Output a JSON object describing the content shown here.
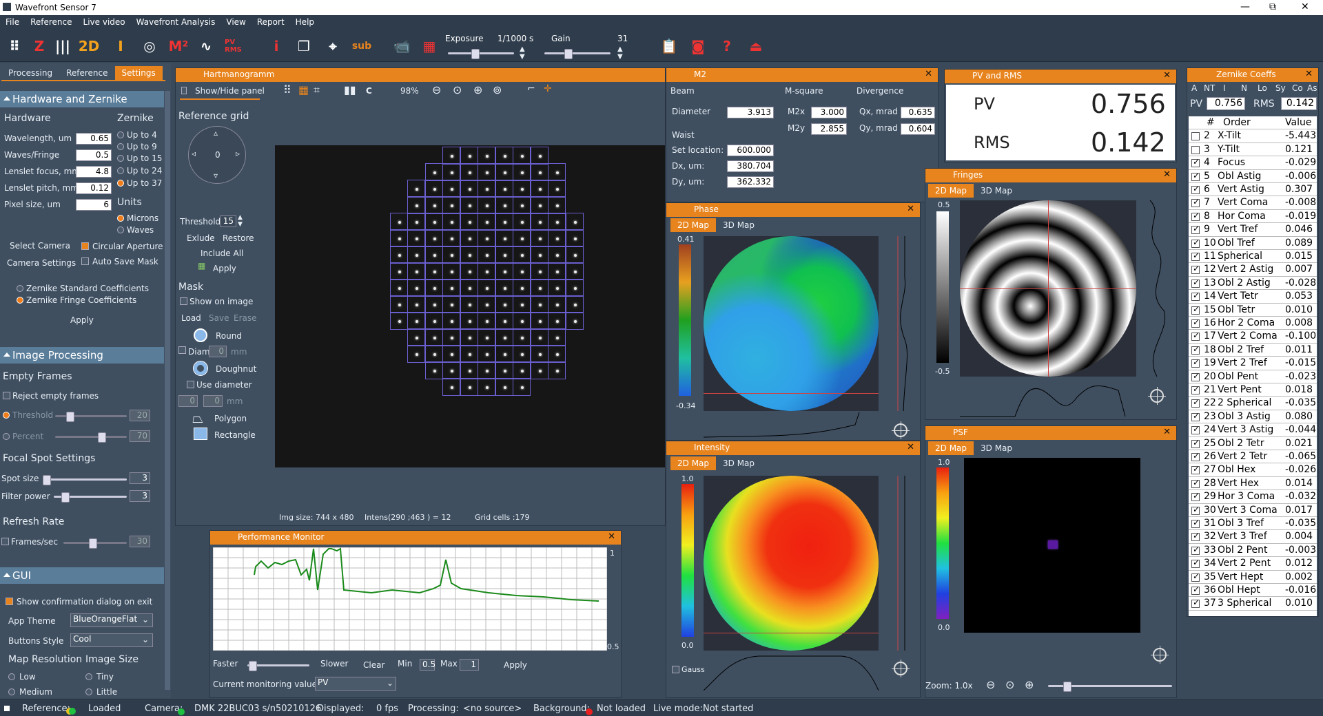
{
  "window": {
    "title": "Wavefront Sensor 7",
    "min": "—",
    "max": "⧉",
    "close": "✕"
  },
  "menu": [
    "File",
    "Reference",
    "Live video",
    "Wavefront Analysis",
    "View",
    "Report",
    "Help"
  ],
  "toolbar": {
    "exposure_label": "Exposure",
    "exposure_value": "1/1000 s",
    "gain_label": "Gain",
    "gain_value": "31",
    "exposure_pos": 0.35,
    "gain_pos": 0.35
  },
  "left_tabs": [
    "Processing",
    "Reference",
    "Settings"
  ],
  "hw": {
    "section": "Hardware and Zernike",
    "hardware": "Hardware",
    "zernike": "Zernike",
    "fields": [
      {
        "label": "Wavelength, um",
        "value": "0.65"
      },
      {
        "label": "Waves/Fringe",
        "value": "0.5"
      },
      {
        "label": "Lenslet focus, mm",
        "value": "4.8"
      },
      {
        "label": "Lenslet pitch, mm",
        "value": "0.12"
      },
      {
        "label": "Pixel size, um",
        "value": "6"
      }
    ],
    "zopts": [
      "Up to 4",
      "Up to 9",
      "Up to 15",
      "Up to 24",
      "Up to 37"
    ],
    "units": "Units",
    "unit_opts": [
      "Microns",
      "Waves"
    ],
    "select_camera": "Select Camera",
    "camera_settings": "Camera Settings",
    "circular": "Circular Aperture",
    "auto_save": "Auto Save Mask",
    "coef_std": "Zernike Standard Coefficients",
    "coef_fringe": "Zernike Fringe Coefficients",
    "apply": "Apply"
  },
  "ip": {
    "section": "Image Processing",
    "empty": "Empty Frames",
    "reject": "Reject empty frames",
    "threshold": "Threshold",
    "threshold_v": "20",
    "percent": "Percent",
    "percent_v": "70",
    "focal": "Focal Spot Settings",
    "spot": "Spot size",
    "spot_v": "3",
    "filter": "Filter power",
    "filter_v": "3",
    "refresh": "Refresh Rate",
    "fps": "Frames/sec",
    "fps_v": "30"
  },
  "gui": {
    "section": "GUI",
    "confirm": "Show confirmation dialog on exit",
    "theme_l": "App Theme",
    "theme_v": "BlueOrangeFlat",
    "btn_l": "Buttons Style",
    "btn_v": "Cool",
    "mapres": "Map Resolution",
    "imgsize": "Image Size",
    "res": [
      "Low",
      "Medium"
    ],
    "size": [
      "Tiny",
      "Little"
    ]
  },
  "hart": {
    "title": "Hartmanogramm",
    "show_hide": "Show/Hide panel",
    "zoom": "98%",
    "c": "C",
    "ref_grid": "Reference grid",
    "dial_v": "0",
    "threshold": "Threshold",
    "threshold_v": "15",
    "exclude": "Exlude",
    "restore": "Restore",
    "include_all": "Include All",
    "apply": "Apply",
    "mask": "Mask",
    "show_on_image": "Show on image",
    "load": "Load",
    "save": "Save",
    "erase": "Erase",
    "round": "Round",
    "diam": "Diam",
    "diam_v": "0",
    "doughnut": "Doughnut",
    "use_diam": "Use diameter",
    "d1": "0",
    "d2": "0",
    "mm": "mm",
    "polygon": "Polygon",
    "rectangle": "Rectangle",
    "status": {
      "img": "Img size: 744 x 480",
      "intens": "Intens(290 ;463 ) =  12",
      "cells": "Grid cells :179"
    }
  },
  "m2": {
    "title": "M2",
    "beam": "Beam",
    "msq": "M-square",
    "div": "Divergence",
    "diameter_l": "Diameter",
    "diameter": "3.913",
    "waist": "Waist",
    "setloc_l": "Set location:",
    "setloc": "600.000",
    "dx_l": "Dx, um:",
    "dx": "380.704",
    "dy_l": "Dy, um:",
    "dy": "362.332",
    "m2x_l": "M2x",
    "m2x": "3.000",
    "m2y_l": "M2y",
    "m2y": "2.855",
    "qx_l": "Qx, mrad",
    "qx": "0.635",
    "qy_l": "Qy, mrad",
    "qy": "0.604"
  },
  "pvrms": {
    "title": "PV and RMS",
    "pv_l": "PV",
    "pv": "0.756",
    "rms_l": "RMS",
    "rms": "0.142"
  },
  "phase": {
    "title": "Phase",
    "tab1": "2D Map",
    "tab2": "3D Map",
    "max": "0.41",
    "min": "-0.34"
  },
  "intensity": {
    "title": "Intensity",
    "tab1": "2D Map",
    "tab2": "3D Map",
    "max": "1.0",
    "min": "0.0",
    "gauss": "Gauss"
  },
  "fringes": {
    "title": "Fringes",
    "tab1": "2D Map",
    "tab2": "3D Map",
    "max": "0.5",
    "min": "-0.5"
  },
  "psf": {
    "title": "PSF",
    "tab1": "2D Map",
    "tab2": "3D Map",
    "max": "1.0",
    "min": "0.0",
    "zoom": "Zoom: 1.0x"
  },
  "perf": {
    "title": "Performance Monitor",
    "ymax": "1",
    "ymin": "0.5",
    "faster": "Faster",
    "slower": "Slower",
    "clear": "Clear",
    "min_l": "Min",
    "min": "0.5",
    "max_l": "Max",
    "max": "1",
    "apply": "Apply",
    "cur_l": "Current monitoring value",
    "cur": "PV"
  },
  "zc": {
    "title": "Zernike Coeffs",
    "hdr": [
      "A",
      "NT",
      "I",
      "N",
      "Lo",
      "Sy",
      "Co",
      "As"
    ],
    "pv_l": "PV",
    "pv": "0.756",
    "rms_l": "RMS",
    "rms": "0.142",
    "col_n": "#",
    "col_order": "Order",
    "col_value": "Value",
    "rows": [
      {
        "n": "2",
        "o": "X-Tilt",
        "v": "-5.443",
        "c": false
      },
      {
        "n": "3",
        "o": "Y-Tilt",
        "v": "0.121",
        "c": false
      },
      {
        "n": "4",
        "o": "Focus",
        "v": "-0.029",
        "c": true
      },
      {
        "n": "5",
        "o": "Obl Astig",
        "v": "-0.006",
        "c": true
      },
      {
        "n": "6",
        "o": "Vert Astig",
        "v": "0.307",
        "c": true
      },
      {
        "n": "7",
        "o": "Vert Coma",
        "v": "-0.008",
        "c": true
      },
      {
        "n": "8",
        "o": "Hor Coma",
        "v": "-0.019",
        "c": true
      },
      {
        "n": "9",
        "o": "Vert Tref",
        "v": "0.046",
        "c": true
      },
      {
        "n": "10",
        "o": "Obl Tref",
        "v": "0.089",
        "c": true
      },
      {
        "n": "11",
        "o": "Spherical",
        "v": "0.015",
        "c": true
      },
      {
        "n": "12",
        "o": "Vert 2 Astig",
        "v": "0.007",
        "c": true
      },
      {
        "n": "13",
        "o": "Obl 2 Astig",
        "v": "-0.028",
        "c": true
      },
      {
        "n": "14",
        "o": "Vert Tetr",
        "v": "0.053",
        "c": true
      },
      {
        "n": "15",
        "o": "Obl Tetr",
        "v": "0.010",
        "c": true
      },
      {
        "n": "16",
        "o": "Hor 2 Coma",
        "v": "0.008",
        "c": true
      },
      {
        "n": "17",
        "o": "Vert 2 Coma",
        "v": "-0.100",
        "c": true
      },
      {
        "n": "18",
        "o": "Obl 2 Tref",
        "v": "0.011",
        "c": true
      },
      {
        "n": "19",
        "o": "Vert 2 Tref",
        "v": "-0.015",
        "c": true
      },
      {
        "n": "20",
        "o": "Obl Pent",
        "v": "-0.023",
        "c": true
      },
      {
        "n": "21",
        "o": "Vert Pent",
        "v": "0.018",
        "c": true
      },
      {
        "n": "22",
        "o": "2 Spherical",
        "v": "-0.035",
        "c": true
      },
      {
        "n": "23",
        "o": "Obl 3 Astig",
        "v": "0.080",
        "c": true
      },
      {
        "n": "24",
        "o": "Vert 3 Astig",
        "v": "-0.044",
        "c": true
      },
      {
        "n": "25",
        "o": "Obl 2 Tetr",
        "v": "0.021",
        "c": true
      },
      {
        "n": "26",
        "o": "Vert 2 Tetr",
        "v": "-0.065",
        "c": true
      },
      {
        "n": "27",
        "o": "Obl Hex",
        "v": "-0.026",
        "c": true
      },
      {
        "n": "28",
        "o": "Vert Hex",
        "v": "0.014",
        "c": true
      },
      {
        "n": "29",
        "o": "Hor 3 Coma",
        "v": "-0.032",
        "c": true
      },
      {
        "n": "30",
        "o": "Vert 3 Coma",
        "v": "0.017",
        "c": true
      },
      {
        "n": "31",
        "o": "Obl 3 Tref",
        "v": "-0.035",
        "c": true
      },
      {
        "n": "32",
        "o": "Vert 3 Tref",
        "v": "0.004",
        "c": true
      },
      {
        "n": "33",
        "o": "Obl 2 Pent",
        "v": "-0.003",
        "c": true
      },
      {
        "n": "34",
        "o": "Vert 2 Pent",
        "v": "0.012",
        "c": true
      },
      {
        "n": "35",
        "o": "Vert Hept",
        "v": "0.002",
        "c": true
      },
      {
        "n": "36",
        "o": "Obl Hept",
        "v": "-0.016",
        "c": true
      },
      {
        "n": "37",
        "o": "3 Spherical",
        "v": "0.010",
        "c": true
      }
    ]
  },
  "status": {
    "reference": "Reference:",
    "loaded": "Loaded",
    "camera": "Camera:",
    "camera_v": "DMK 22BUC03 s/n50210126",
    "displayed": "Displayed:",
    "fps": "0 fps",
    "processing": "Processing:",
    "nosource": "<no source>",
    "background": "Background:",
    "notloaded": "Not loaded",
    "live": "Live mode:",
    "notstarted": "Not started"
  }
}
